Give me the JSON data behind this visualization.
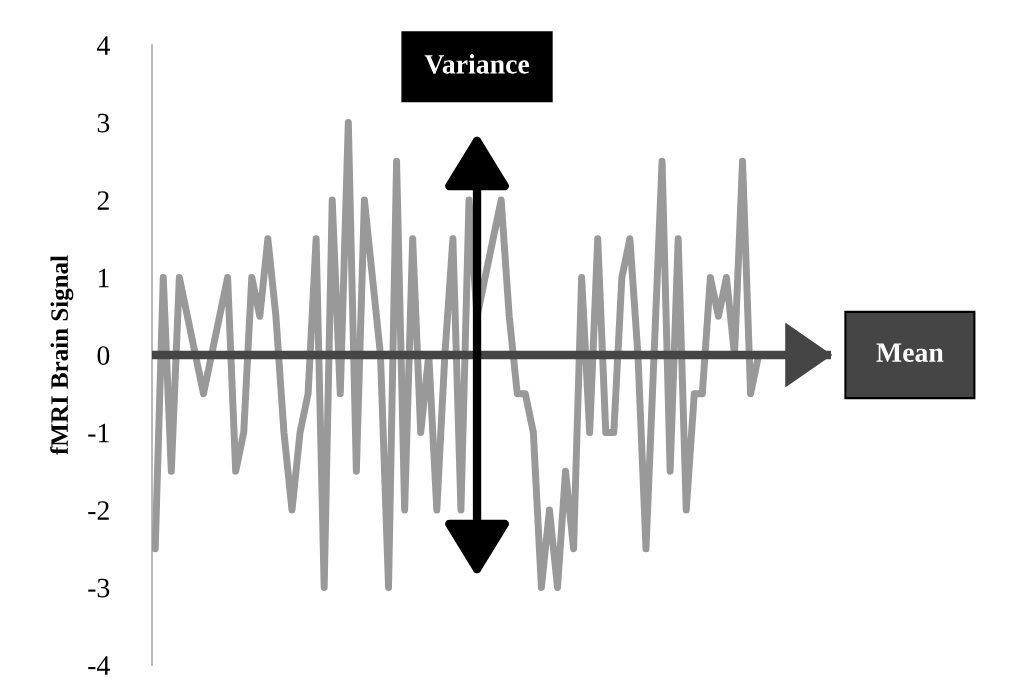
{
  "chart_data": {
    "type": "line",
    "ylabel": "fMRI Brain Signal",
    "categories": [
      null,
      null,
      null,
      null,
      null,
      null,
      null,
      null,
      null,
      null,
      null,
      null,
      null,
      null,
      null,
      null,
      null,
      null,
      null,
      null,
      null,
      null,
      null,
      null,
      null,
      null,
      null,
      null,
      null,
      null,
      null,
      null,
      null,
      null,
      null,
      null,
      null,
      null,
      null,
      null,
      null,
      null,
      null,
      null,
      null,
      null,
      null,
      null,
      null,
      null,
      null,
      null,
      null,
      null,
      null,
      null,
      null,
      null,
      null,
      null,
      null,
      null,
      null,
      null,
      null,
      null,
      null,
      null,
      null,
      null,
      null,
      null,
      null,
      null,
      null,
      null
    ],
    "series": [
      {
        "color": "#999999",
        "values": [
          -2.5,
          1,
          -1.5,
          1,
          0.5,
          0,
          -0.5,
          0,
          0.5,
          1,
          -1.5,
          -1,
          1,
          0.5,
          1.5,
          0.5,
          -1,
          -2,
          -1,
          -0.5,
          1.5,
          -3,
          2,
          -0.5,
          3,
          -1.5,
          2,
          1,
          0,
          -3,
          2.5,
          -2,
          1.5,
          -1,
          0,
          -2,
          0,
          1.5,
          -2,
          2,
          0.5,
          1,
          1.5,
          2,
          0.5,
          -0.5,
          -0.5,
          -1,
          -3,
          -2,
          -3,
          -1.5,
          -2.5,
          1,
          -1,
          1.5,
          -1,
          -1,
          1,
          1.5,
          0,
          -2.5,
          0,
          2.5,
          -1.5,
          1.5,
          -2,
          -0.5,
          -0.5,
          1,
          0.5,
          1,
          0,
          2.5,
          -0.5,
          0
        ]
      }
    ],
    "ylim": [
      -4,
      4
    ],
    "yticks": [
      -4,
      -3,
      -2,
      -1,
      0,
      1,
      2,
      3,
      4
    ],
    "tick_labels": "y",
    "grid": false,
    "marker": "none",
    "line_style": "solid",
    "ref_lines": [
      {
        "axis": "y",
        "value": 0,
        "label": "Mean",
        "color": "#454545"
      }
    ],
    "annotations": [
      "Variance"
    ]
  }
}
